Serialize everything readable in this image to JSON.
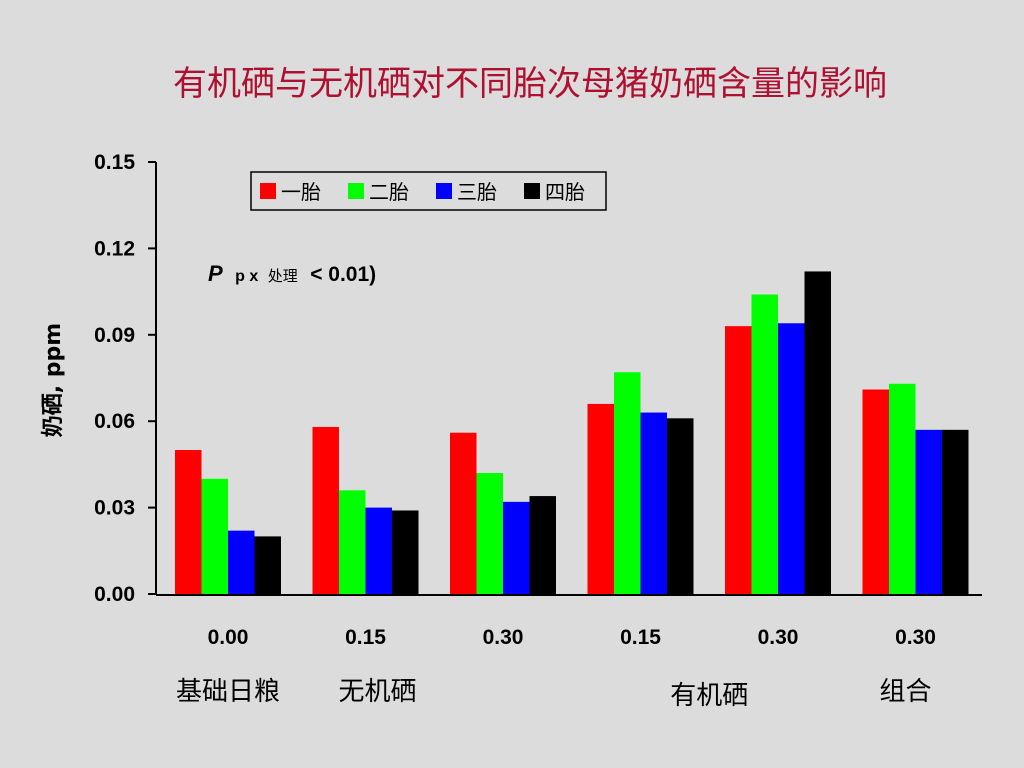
{
  "slide": {
    "title": "有机硒与无机硒对不同胎次母猪奶硒含量的影响"
  },
  "chart_data": {
    "type": "bar",
    "ylabel": "奶硒, ppm",
    "ylim": [
      0,
      0.15
    ],
    "yticks": [
      "0.00",
      "0.03",
      "0.06",
      "0.09",
      "0.12",
      "0.15"
    ],
    "categories": [
      "0.00",
      "0.15",
      "0.30",
      "0.15",
      "0.30",
      "0.30"
    ],
    "group_labels": [
      "基础日粮",
      "无机硒",
      "有机硒",
      "组合"
    ],
    "legend_placement": "top",
    "grid": false,
    "annotation": {
      "p": "P",
      "sub": "p x",
      "sub_cn": "处理",
      "rest": "< 0.01)"
    },
    "series": [
      {
        "name": "一胎",
        "color": "#ff0000",
        "values": [
          0.05,
          0.058,
          0.056,
          0.066,
          0.093,
          0.071
        ]
      },
      {
        "name": "二胎",
        "color": "#00ff00",
        "values": [
          0.04,
          0.036,
          0.042,
          0.077,
          0.104,
          0.073
        ]
      },
      {
        "name": "三胎",
        "color": "#0000ff",
        "values": [
          0.022,
          0.03,
          0.032,
          0.063,
          0.094,
          0.057
        ]
      },
      {
        "name": "四胎",
        "color": "#000000",
        "values": [
          0.02,
          0.029,
          0.034,
          0.061,
          0.112,
          0.057
        ]
      }
    ]
  }
}
